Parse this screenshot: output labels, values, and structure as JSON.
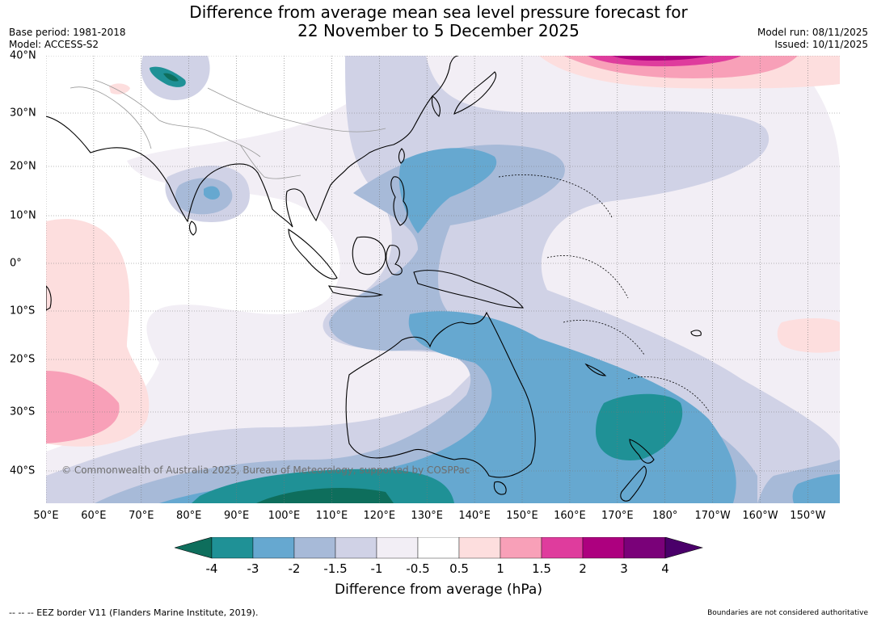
{
  "header": {
    "title_line1": "Difference from average mean sea level pressure forecast for",
    "title_line2": "22 November to 5 December 2025",
    "base_period": "Base period: 1981-2018",
    "model": "Model: ACCESS-S2",
    "model_run": "Model run: 08/11/2025",
    "issued": "Issued: 10/11/2025"
  },
  "map": {
    "longitude_labels": [
      "50°E",
      "60°E",
      "70°E",
      "80°E",
      "90°E",
      "100°E",
      "110°E",
      "120°E",
      "130°E",
      "140°E",
      "150°E",
      "160°E",
      "170°E",
      "180°",
      "170°W",
      "160°W",
      "150°W"
    ],
    "latitude_labels": [
      "40°N",
      "30°N",
      "20°N",
      "10°N",
      "0°",
      "10°S",
      "20°S",
      "30°S",
      "40°S"
    ],
    "extent": {
      "lon_min": 50,
      "lon_max": 216.5,
      "lat_min": -47,
      "lat_max": 40
    },
    "copyright": "© Commonwealth of Australia 2025, Bureau of Meteorology, supported by COSPPac",
    "gridlines": true
  },
  "colorbar": {
    "tick_labels": [
      "-4",
      "-3",
      "-2",
      "-1.5",
      "-1",
      "-0.5",
      "0.5",
      "1",
      "1.5",
      "2",
      "3",
      "4"
    ],
    "colors": [
      "#0e6e5c",
      "#1f9196",
      "#66a8d0",
      "#a7bad8",
      "#d0d2e6",
      "#f2eef5",
      "#ffffff",
      "#fddede",
      "#f8a0b8",
      "#df3c9d",
      "#ad007f",
      "#7a0179",
      "#4a006a"
    ],
    "label": "Difference from average (hPa)"
  },
  "footer": {
    "eez_note": "--  --  -- EEZ border V11 (Flanders Marine Institute, 2019).",
    "disclaimer": "Boundaries are not considered authoritative"
  }
}
